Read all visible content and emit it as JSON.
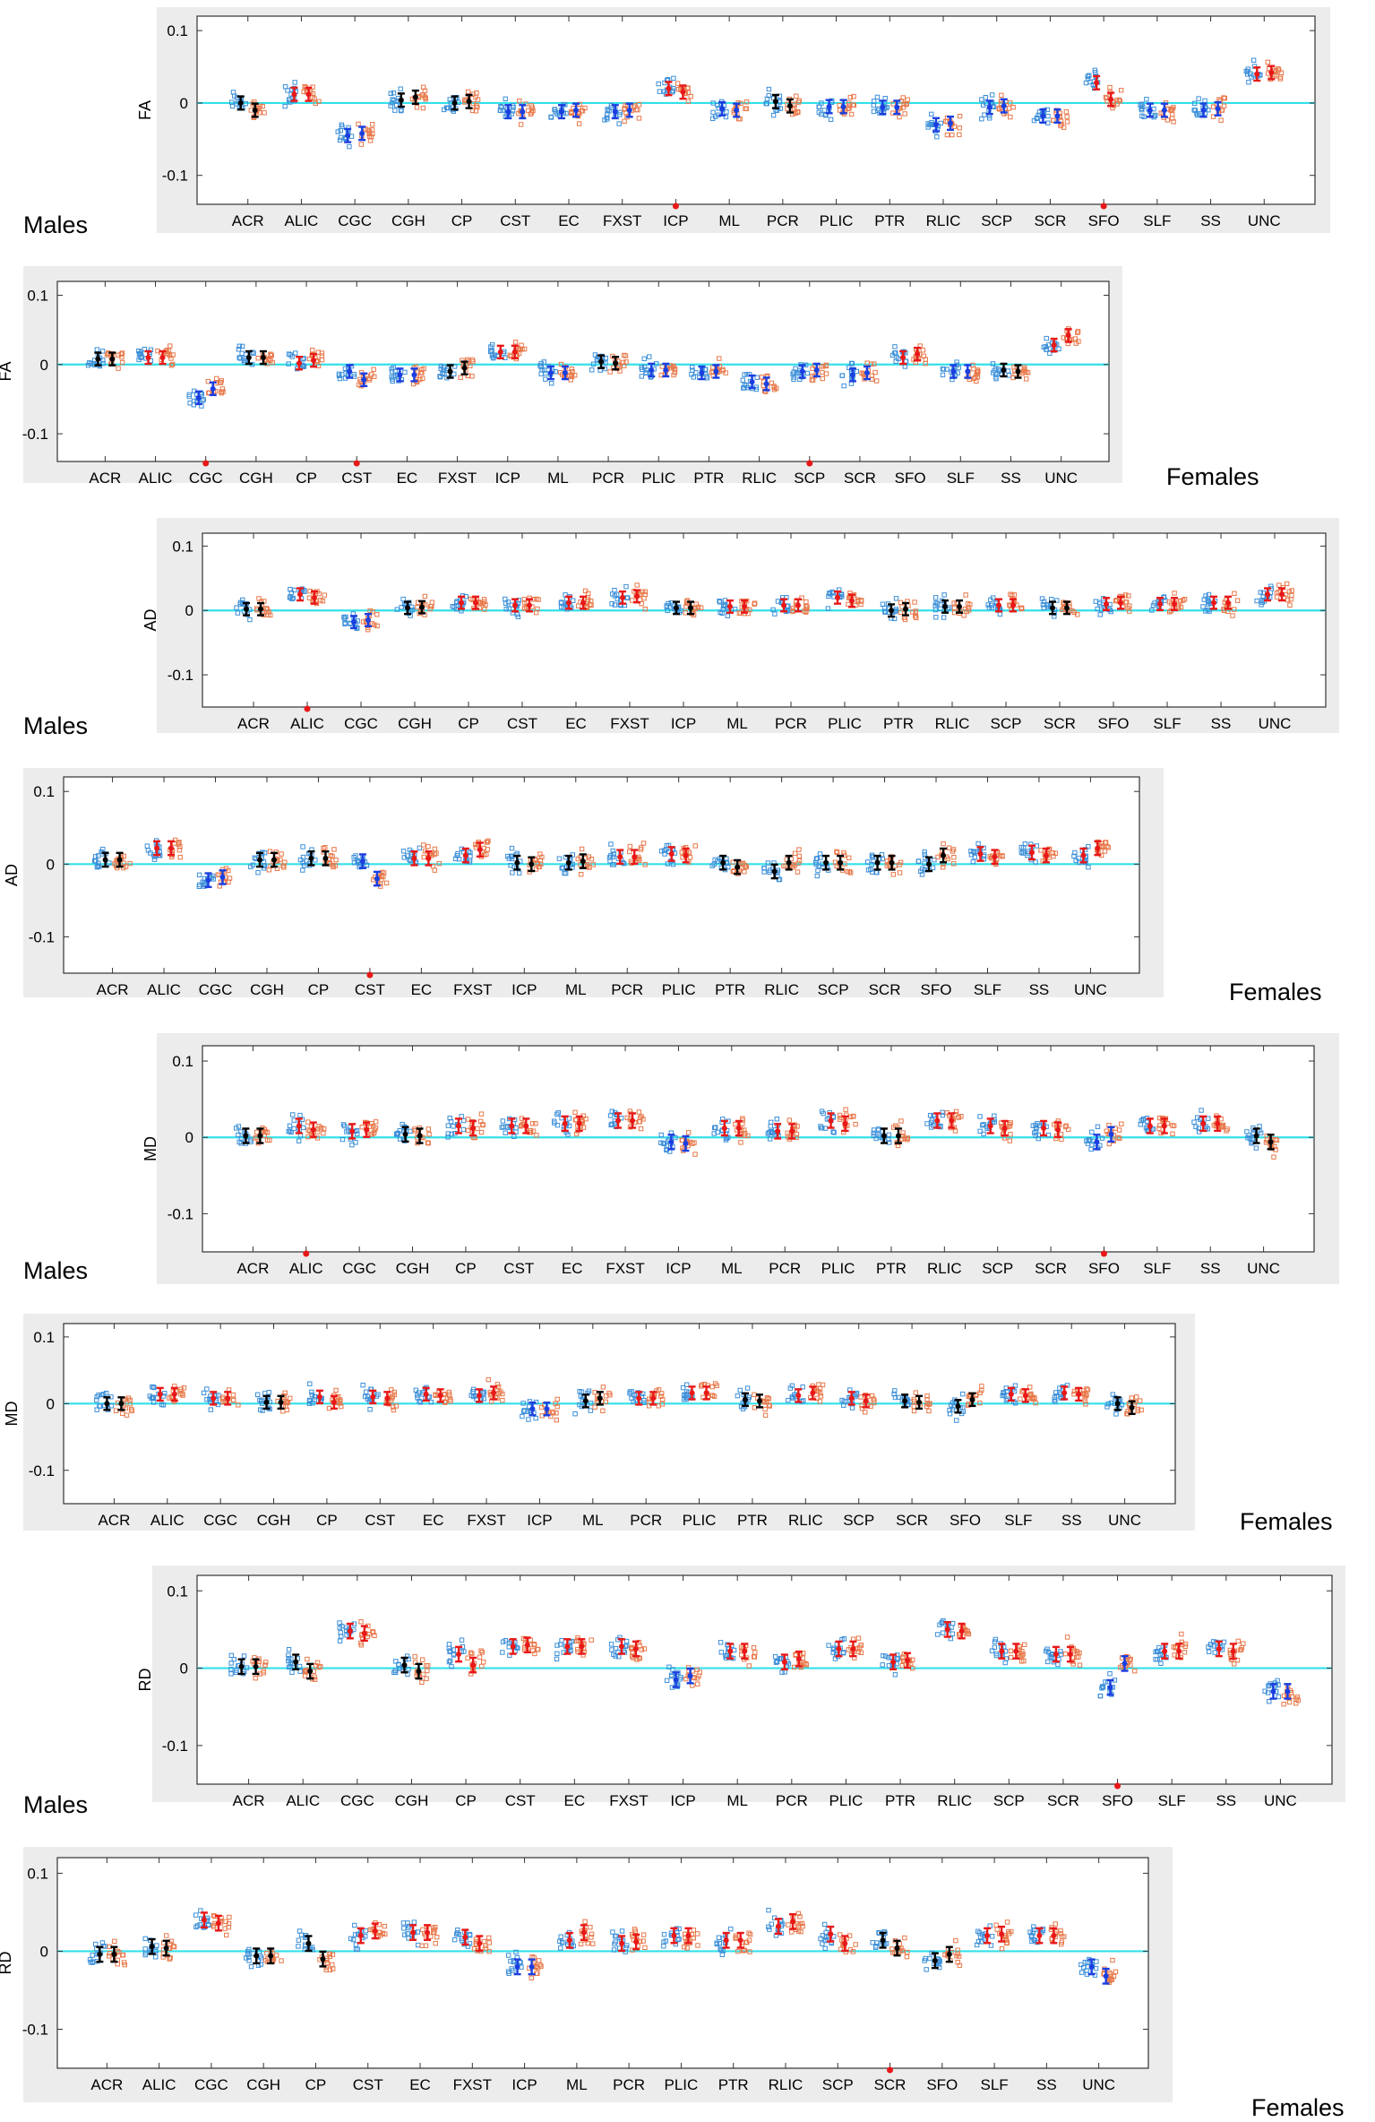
{
  "figure": {
    "description_colors": {
      "baseline": "#33e0ea",
      "control_points": "#3c8fd8",
      "case_points": "#e8784a",
      "sig_low": "#1a3fe0",
      "sig_high": "#e81818",
      "nonsig": "#000000",
      "marker": "#e81818"
    }
  },
  "chart_data": [
    {
      "type": "scatter",
      "metric": "FA",
      "sex": "Males",
      "ylabel": "FA",
      "yticks": [
        "0.1",
        "0",
        "-0.1"
      ],
      "ylim": [
        -0.14,
        0.12
      ],
      "categories": [
        "ACR",
        "ALIC",
        "CGC",
        "CGH",
        "CP",
        "CST",
        "EC",
        "FXST",
        "ICP",
        "ML",
        "PCR",
        "PLIC",
        "PTR",
        "RLIC",
        "SCP",
        "SCR",
        "SFO",
        "SLF",
        "SS",
        "UNC"
      ],
      "mean_left": [
        0.0,
        0.012,
        -0.045,
        0.004,
        0.0,
        -0.012,
        -0.012,
        -0.012,
        0.02,
        -0.008,
        0.002,
        -0.005,
        -0.006,
        -0.03,
        -0.006,
        -0.018,
        0.028,
        -0.01,
        -0.01,
        0.04
      ],
      "mean_right": [
        -0.01,
        0.012,
        -0.042,
        0.008,
        0.002,
        -0.012,
        -0.01,
        -0.01,
        0.015,
        -0.01,
        -0.004,
        -0.005,
        -0.006,
        -0.028,
        -0.004,
        -0.018,
        0.005,
        -0.01,
        -0.008,
        0.042
      ],
      "flags": [
        "n",
        "r",
        "b",
        "n",
        "n",
        "b",
        "b",
        "b",
        "r",
        "b",
        "n",
        "b",
        "b",
        "b",
        "b",
        "b",
        "r",
        "b",
        "b",
        "r"
      ],
      "marked": [
        "ICP",
        "SFO"
      ]
    },
    {
      "type": "scatter",
      "metric": "FA",
      "sex": "Females",
      "ylabel": "FA",
      "yticks": [
        "0.1",
        "0",
        "-0.1"
      ],
      "ylim": [
        -0.14,
        0.12
      ],
      "categories": [
        "ACR",
        "ALIC",
        "CGC",
        "CGH",
        "CP",
        "CST",
        "EC",
        "FXST",
        "ICP",
        "ML",
        "PCR",
        "PLIC",
        "PTR",
        "RLIC",
        "SCP",
        "SCR",
        "SFO",
        "SLF",
        "SS",
        "UNC"
      ],
      "mean_left": [
        0.008,
        0.01,
        -0.048,
        0.01,
        0.002,
        -0.01,
        -0.015,
        -0.01,
        0.018,
        -0.012,
        0.004,
        -0.008,
        -0.012,
        -0.025,
        -0.01,
        -0.015,
        0.01,
        -0.01,
        -0.008,
        0.028
      ],
      "mean_right": [
        0.008,
        0.01,
        -0.035,
        0.01,
        0.006,
        -0.022,
        -0.015,
        -0.005,
        0.018,
        -0.012,
        0.002,
        -0.008,
        -0.01,
        -0.028,
        -0.008,
        -0.012,
        0.015,
        -0.01,
        -0.01,
        0.042
      ],
      "flags": [
        "n",
        "r",
        "b",
        "n",
        "r",
        "b",
        "b",
        "n",
        "r",
        "b",
        "n",
        "b",
        "b",
        "b",
        "b",
        "b",
        "r",
        "b",
        "n",
        "r"
      ],
      "marked": [
        "CGC",
        "CST",
        "SCP"
      ]
    },
    {
      "type": "scatter",
      "metric": "AD",
      "sex": "Males",
      "ylabel": "AD",
      "yticks": [
        "0.1",
        "0",
        "-0.1"
      ],
      "ylim": [
        -0.15,
        0.12
      ],
      "categories": [
        "ACR",
        "ALIC",
        "CGC",
        "CGH",
        "CP",
        "CST",
        "EC",
        "FXST",
        "ICP",
        "ML",
        "PCR",
        "PLIC",
        "PTR",
        "RLIC",
        "SCP",
        "SCR",
        "SFO",
        "SLF",
        "SS",
        "UNC"
      ],
      "mean_left": [
        0.002,
        0.025,
        -0.018,
        0.004,
        0.012,
        0.008,
        0.012,
        0.02,
        0.004,
        0.006,
        0.008,
        0.02,
        0.0,
        0.006,
        0.008,
        0.004,
        0.01,
        0.01,
        0.012,
        0.025
      ],
      "mean_right": [
        0.002,
        0.02,
        -0.015,
        0.005,
        0.012,
        0.008,
        0.012,
        0.022,
        0.004,
        0.006,
        0.008,
        0.015,
        0.002,
        0.006,
        0.008,
        0.004,
        0.012,
        0.01,
        0.012,
        0.025
      ],
      "flags": [
        "n",
        "r",
        "b",
        "n",
        "r",
        "r",
        "r",
        "r",
        "n",
        "r",
        "r",
        "r",
        "n",
        "n",
        "r",
        "n",
        "r",
        "r",
        "r",
        "r"
      ],
      "marked": [
        "ALIC"
      ]
    },
    {
      "type": "scatter",
      "metric": "AD",
      "sex": "Females",
      "ylabel": "AD",
      "yticks": [
        "0.1",
        "0",
        "-0.1"
      ],
      "ylim": [
        -0.15,
        0.12
      ],
      "categories": [
        "ACR",
        "ALIC",
        "CGC",
        "CGH",
        "CP",
        "CST",
        "EC",
        "FXST",
        "ICP",
        "ML",
        "PCR",
        "PLIC",
        "PTR",
        "RLIC",
        "SCP",
        "SCR",
        "SFO",
        "SLF",
        "SS",
        "UNC"
      ],
      "mean_left": [
        0.006,
        0.022,
        -0.022,
        0.006,
        0.008,
        0.004,
        0.008,
        0.012,
        0.002,
        0.002,
        0.01,
        0.014,
        0.002,
        -0.01,
        0.002,
        0.002,
        0.0,
        0.014,
        0.016,
        0.012
      ],
      "mean_right": [
        0.006,
        0.022,
        -0.018,
        0.006,
        0.008,
        -0.02,
        0.008,
        0.02,
        0.0,
        0.004,
        0.01,
        0.012,
        -0.004,
        0.002,
        0.002,
        0.002,
        0.012,
        0.01,
        0.012,
        0.022
      ],
      "flags": [
        "n",
        "r",
        "b",
        "n",
        "n",
        "b",
        "r",
        "r",
        "n",
        "n",
        "r",
        "r",
        "n",
        "n",
        "n",
        "n",
        "n",
        "r",
        "r",
        "r"
      ],
      "marked": [
        "CST"
      ]
    },
    {
      "type": "scatter",
      "metric": "MD",
      "sex": "Males",
      "ylabel": "MD",
      "yticks": [
        "0.1",
        "0",
        "-0.1"
      ],
      "ylim": [
        -0.15,
        0.12
      ],
      "categories": [
        "ACR",
        "ALIC",
        "CGC",
        "CGH",
        "CP",
        "CST",
        "EC",
        "FXST",
        "ICP",
        "ML",
        "PCR",
        "PLIC",
        "PTR",
        "RLIC",
        "SCP",
        "SCR",
        "SFO",
        "SLF",
        "SS",
        "UNC"
      ],
      "mean_left": [
        0.002,
        0.015,
        0.008,
        0.004,
        0.015,
        0.015,
        0.018,
        0.022,
        -0.006,
        0.012,
        0.008,
        0.022,
        0.002,
        0.022,
        0.015,
        0.012,
        -0.006,
        0.015,
        0.018,
        0.002
      ],
      "mean_right": [
        0.002,
        0.01,
        0.01,
        0.002,
        0.012,
        0.015,
        0.018,
        0.022,
        -0.008,
        0.012,
        0.008,
        0.018,
        0.002,
        0.022,
        0.012,
        0.01,
        0.004,
        0.015,
        0.018,
        -0.006
      ],
      "flags": [
        "n",
        "r",
        "r",
        "n",
        "r",
        "r",
        "r",
        "r",
        "b",
        "r",
        "r",
        "r",
        "n",
        "r",
        "r",
        "r",
        "b",
        "r",
        "r",
        "n"
      ],
      "marked": [
        "ALIC",
        "SFO"
      ]
    },
    {
      "type": "scatter",
      "metric": "MD",
      "sex": "Females",
      "ylabel": "MD",
      "yticks": [
        "0.1",
        "0",
        "-0.1"
      ],
      "ylim": [
        -0.15,
        0.12
      ],
      "categories": [
        "ACR",
        "ALIC",
        "CGC",
        "CGH",
        "CP",
        "CST",
        "EC",
        "FXST",
        "ICP",
        "ML",
        "PCR",
        "PLIC",
        "PTR",
        "RLIC",
        "SCP",
        "SCR",
        "SFO",
        "SLF",
        "SS",
        "UNC"
      ],
      "mean_left": [
        0.0,
        0.014,
        0.008,
        0.002,
        0.01,
        0.01,
        0.014,
        0.012,
        -0.008,
        0.004,
        0.008,
        0.016,
        0.006,
        0.012,
        0.008,
        0.004,
        -0.004,
        0.014,
        0.016,
        0.0
      ],
      "mean_right": [
        0.0,
        0.014,
        0.008,
        0.002,
        0.002,
        0.008,
        0.012,
        0.016,
        -0.008,
        0.008,
        0.008,
        0.016,
        0.004,
        0.016,
        0.004,
        0.002,
        0.006,
        0.012,
        0.014,
        -0.006
      ],
      "flags": [
        "n",
        "r",
        "r",
        "n",
        "r",
        "r",
        "r",
        "r",
        "b",
        "n",
        "r",
        "r",
        "n",
        "r",
        "r",
        "n",
        "n",
        "r",
        "r",
        "n"
      ],
      "marked": []
    },
    {
      "type": "scatter",
      "metric": "RD",
      "sex": "Males",
      "ylabel": "RD",
      "yticks": [
        "0.1",
        "0",
        "-0.1"
      ],
      "ylim": [
        -0.15,
        0.12
      ],
      "categories": [
        "ACR",
        "ALIC",
        "CGC",
        "CGH",
        "CP",
        "CST",
        "EC",
        "FXST",
        "ICP",
        "ML",
        "PCR",
        "PLIC",
        "PTR",
        "RLIC",
        "SCP",
        "SCR",
        "SFO",
        "SLF",
        "SS",
        "UNC"
      ],
      "mean_left": [
        0.002,
        0.008,
        0.048,
        0.004,
        0.018,
        0.028,
        0.028,
        0.028,
        -0.015,
        0.022,
        0.008,
        0.025,
        0.008,
        0.05,
        0.022,
        0.018,
        -0.025,
        0.022,
        0.025,
        -0.03
      ],
      "mean_right": [
        0.002,
        -0.004,
        0.045,
        -0.004,
        0.004,
        0.03,
        0.028,
        0.025,
        -0.01,
        0.022,
        0.012,
        0.025,
        0.01,
        0.048,
        0.022,
        0.018,
        0.006,
        0.022,
        0.022,
        -0.03
      ],
      "flags": [
        "n",
        "n",
        "r",
        "n",
        "r",
        "r",
        "r",
        "r",
        "b",
        "r",
        "r",
        "r",
        "r",
        "r",
        "r",
        "r",
        "b",
        "r",
        "r",
        "b"
      ],
      "marked": [
        "SFO"
      ]
    },
    {
      "type": "scatter",
      "metric": "RD",
      "sex": "Females",
      "ylabel": "RD",
      "yticks": [
        "0.1",
        "0",
        "-0.1"
      ],
      "ylim": [
        -0.15,
        0.12
      ],
      "categories": [
        "ACR",
        "ALIC",
        "CGC",
        "CGH",
        "CP",
        "CST",
        "EC",
        "FXST",
        "ICP",
        "ML",
        "PCR",
        "PLIC",
        "PTR",
        "RLIC",
        "SCP",
        "SCR",
        "SFO",
        "SLF",
        "SS",
        "UNC"
      ],
      "mean_left": [
        -0.004,
        0.006,
        0.04,
        -0.006,
        0.01,
        0.02,
        0.024,
        0.018,
        -0.02,
        0.014,
        0.01,
        0.02,
        0.014,
        0.032,
        0.022,
        0.014,
        -0.012,
        0.02,
        0.02,
        -0.02
      ],
      "mean_right": [
        -0.004,
        0.004,
        0.036,
        -0.006,
        -0.01,
        0.026,
        0.024,
        0.01,
        -0.02,
        0.024,
        0.012,
        0.02,
        0.014,
        0.038,
        0.01,
        0.004,
        -0.004,
        0.022,
        0.02,
        -0.032
      ],
      "flags": [
        "n",
        "n",
        "r",
        "n",
        "n",
        "r",
        "r",
        "r",
        "b",
        "r",
        "r",
        "r",
        "r",
        "r",
        "r",
        "n",
        "n",
        "r",
        "r",
        "b"
      ],
      "marked": [
        "SCR"
      ]
    }
  ]
}
